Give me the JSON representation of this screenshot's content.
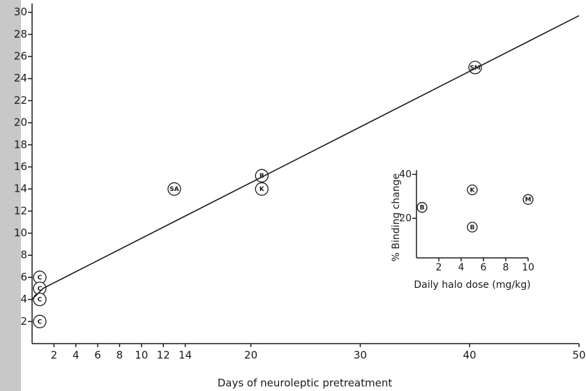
{
  "chart_data": {
    "type": "scatter",
    "xlabel": "Days of neuroleptic pretreatment",
    "xlim": [
      0,
      50
    ],
    "ylim": [
      0,
      30.8
    ],
    "xticks": [
      2,
      4,
      6,
      8,
      10,
      12,
      14,
      20,
      30,
      40,
      50
    ],
    "yticks": [
      2,
      4,
      6,
      8,
      10,
      12,
      14,
      16,
      18,
      20,
      22,
      24,
      26,
      28,
      30
    ],
    "points": {
      "x": [
        0.7,
        0.7,
        0.7,
        0.7,
        13,
        21,
        21,
        40.5
      ],
      "y": [
        6,
        5,
        4,
        2,
        14,
        15.2,
        14,
        25
      ],
      "labels": [
        "C",
        "C",
        "C",
        "C",
        "SA",
        "B",
        "K",
        "SM"
      ]
    },
    "fit": {
      "x": [
        0,
        1,
        50
      ],
      "y": [
        4,
        5,
        29.7
      ]
    },
    "inset": {
      "type": "scatter",
      "xlabel": "Daily halo dose (mg/kg)",
      "ylabel": "% Binding change",
      "xlim": [
        0,
        10
      ],
      "ylim": [
        2,
        42
      ],
      "xticks": [
        2,
        4,
        6,
        8,
        10
      ],
      "yticks": [
        20,
        40
      ],
      "points": {
        "x": [
          0.5,
          5,
          5,
          10
        ],
        "y": [
          25,
          33,
          16,
          28.6
        ],
        "labels": [
          "B",
          "K",
          "B",
          "M"
        ]
      }
    }
  }
}
